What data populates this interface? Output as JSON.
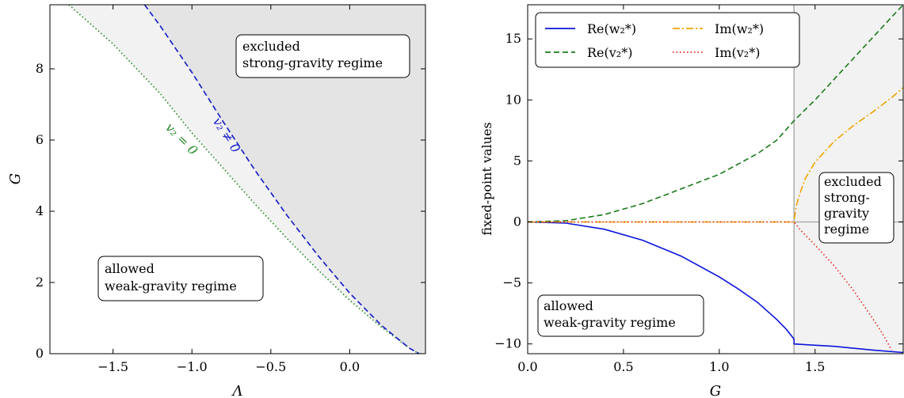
{
  "chart_data": [
    {
      "type": "area",
      "xlabel": "Λ",
      "ylabel": "G",
      "xlim": [
        -1.9,
        0.48
      ],
      "ylim": [
        0,
        9.8
      ],
      "x_ticks": [
        -1.5,
        -1.0,
        -0.5,
        0.0
      ],
      "x_tick_labels": [
        "−1.5",
        "−1.0",
        "−0.5",
        "0.0"
      ],
      "y_ticks": [
        0,
        2,
        4,
        6,
        8
      ],
      "y_tick_labels": [
        "0",
        "2",
        "4",
        "6",
        "8"
      ],
      "series": [
        {
          "name": "v₂ = 0",
          "style": "dotted",
          "color": "#228b22",
          "x": [
            -1.78,
            -1.5,
            -1.2,
            -1.0,
            -0.8,
            -0.6,
            -0.4,
            -0.2,
            0.0,
            0.2,
            0.38,
            0.44
          ],
          "y": [
            9.8,
            8.7,
            7.3,
            6.2,
            5.2,
            4.2,
            3.25,
            2.35,
            1.5,
            0.75,
            0.15,
            0.0
          ]
        },
        {
          "name": "v₂ ≠ 0",
          "style": "dashed",
          "color": "#1c22c9",
          "x": [
            -1.3,
            -1.2,
            -1.0,
            -0.8,
            -0.6,
            -0.4,
            -0.2,
            0.0,
            0.2,
            0.38,
            0.44
          ],
          "y": [
            9.8,
            9.2,
            7.9,
            6.5,
            5.15,
            3.9,
            2.75,
            1.7,
            0.8,
            0.15,
            0.0
          ]
        }
      ],
      "annotations": [
        {
          "lines": [
            "excluded",
            "strong-gravity regime"
          ]
        },
        {
          "lines": [
            "allowed",
            "weak-gravity regime"
          ]
        }
      ],
      "curve_labels": {
        "dashed": "v₂ ≠ 0",
        "dotted": "v₂ = 0"
      }
    },
    {
      "type": "line",
      "xlabel": "G",
      "ylabel": "fixed-point values",
      "xlim": [
        0.0,
        1.96
      ],
      "ylim": [
        -10.8,
        17.8
      ],
      "x_ticks": [
        0.0,
        0.5,
        1.0,
        1.5
      ],
      "x_tick_labels": [
        "0.0",
        "0.5",
        "1.0",
        "1.5"
      ],
      "y_ticks": [
        -10,
        -5,
        0,
        5,
        10,
        15
      ],
      "y_tick_labels": [
        "−10",
        "−5",
        "0",
        "5",
        "10",
        "15"
      ],
      "vline": 1.39,
      "legend": {
        "placement": "top-left",
        "columns": 2
      },
      "series": [
        {
          "name": "Re(w₂*)",
          "style": "solid",
          "color": "#0a14dc",
          "x": [
            0.0,
            0.2,
            0.4,
            0.6,
            0.8,
            1.0,
            1.1,
            1.2,
            1.3,
            1.35,
            1.39,
            1.39,
            1.6,
            1.8,
            1.96
          ],
          "y": [
            0.0,
            -0.1,
            -0.6,
            -1.5,
            -2.8,
            -4.5,
            -5.5,
            -6.6,
            -8.0,
            -8.8,
            -9.6,
            -10.0,
            -10.2,
            -10.5,
            -10.7
          ]
        },
        {
          "name": "Re(v₂*)",
          "style": "dashed",
          "color": "#1a7a1a",
          "x": [
            0.0,
            0.2,
            0.4,
            0.6,
            0.8,
            1.0,
            1.2,
            1.3,
            1.39,
            1.5,
            1.6,
            1.7,
            1.8,
            1.9,
            1.96
          ],
          "y": [
            0.0,
            0.1,
            0.6,
            1.5,
            2.7,
            3.9,
            5.6,
            6.7,
            8.3,
            10.0,
            11.7,
            13.4,
            15.1,
            16.8,
            17.8
          ]
        },
        {
          "name": "Im(w₂*)",
          "style": "dashdot",
          "color": "#f0a500",
          "x": [
            0.0,
            1.39,
            1.4,
            1.42,
            1.45,
            1.5,
            1.6,
            1.7,
            1.8,
            1.9,
            1.96
          ],
          "y": [
            0.0,
            0.0,
            1.2,
            2.3,
            3.6,
            4.9,
            6.6,
            7.9,
            9.0,
            10.2,
            11.0
          ]
        },
        {
          "name": "Im(v₂*)",
          "style": "dotted",
          "color": "#e8231b",
          "x": [
            0.0,
            1.39,
            1.42,
            1.5,
            1.6,
            1.7,
            1.8,
            1.85,
            1.9
          ],
          "y": [
            0.0,
            0.0,
            -0.6,
            -1.9,
            -3.6,
            -5.6,
            -7.9,
            -9.1,
            -10.5
          ]
        }
      ],
      "annotations": [
        {
          "lines": [
            "excluded",
            "strong-",
            "gravity",
            "regime"
          ]
        },
        {
          "lines": [
            "allowed",
            "weak-gravity regime"
          ]
        }
      ]
    }
  ]
}
